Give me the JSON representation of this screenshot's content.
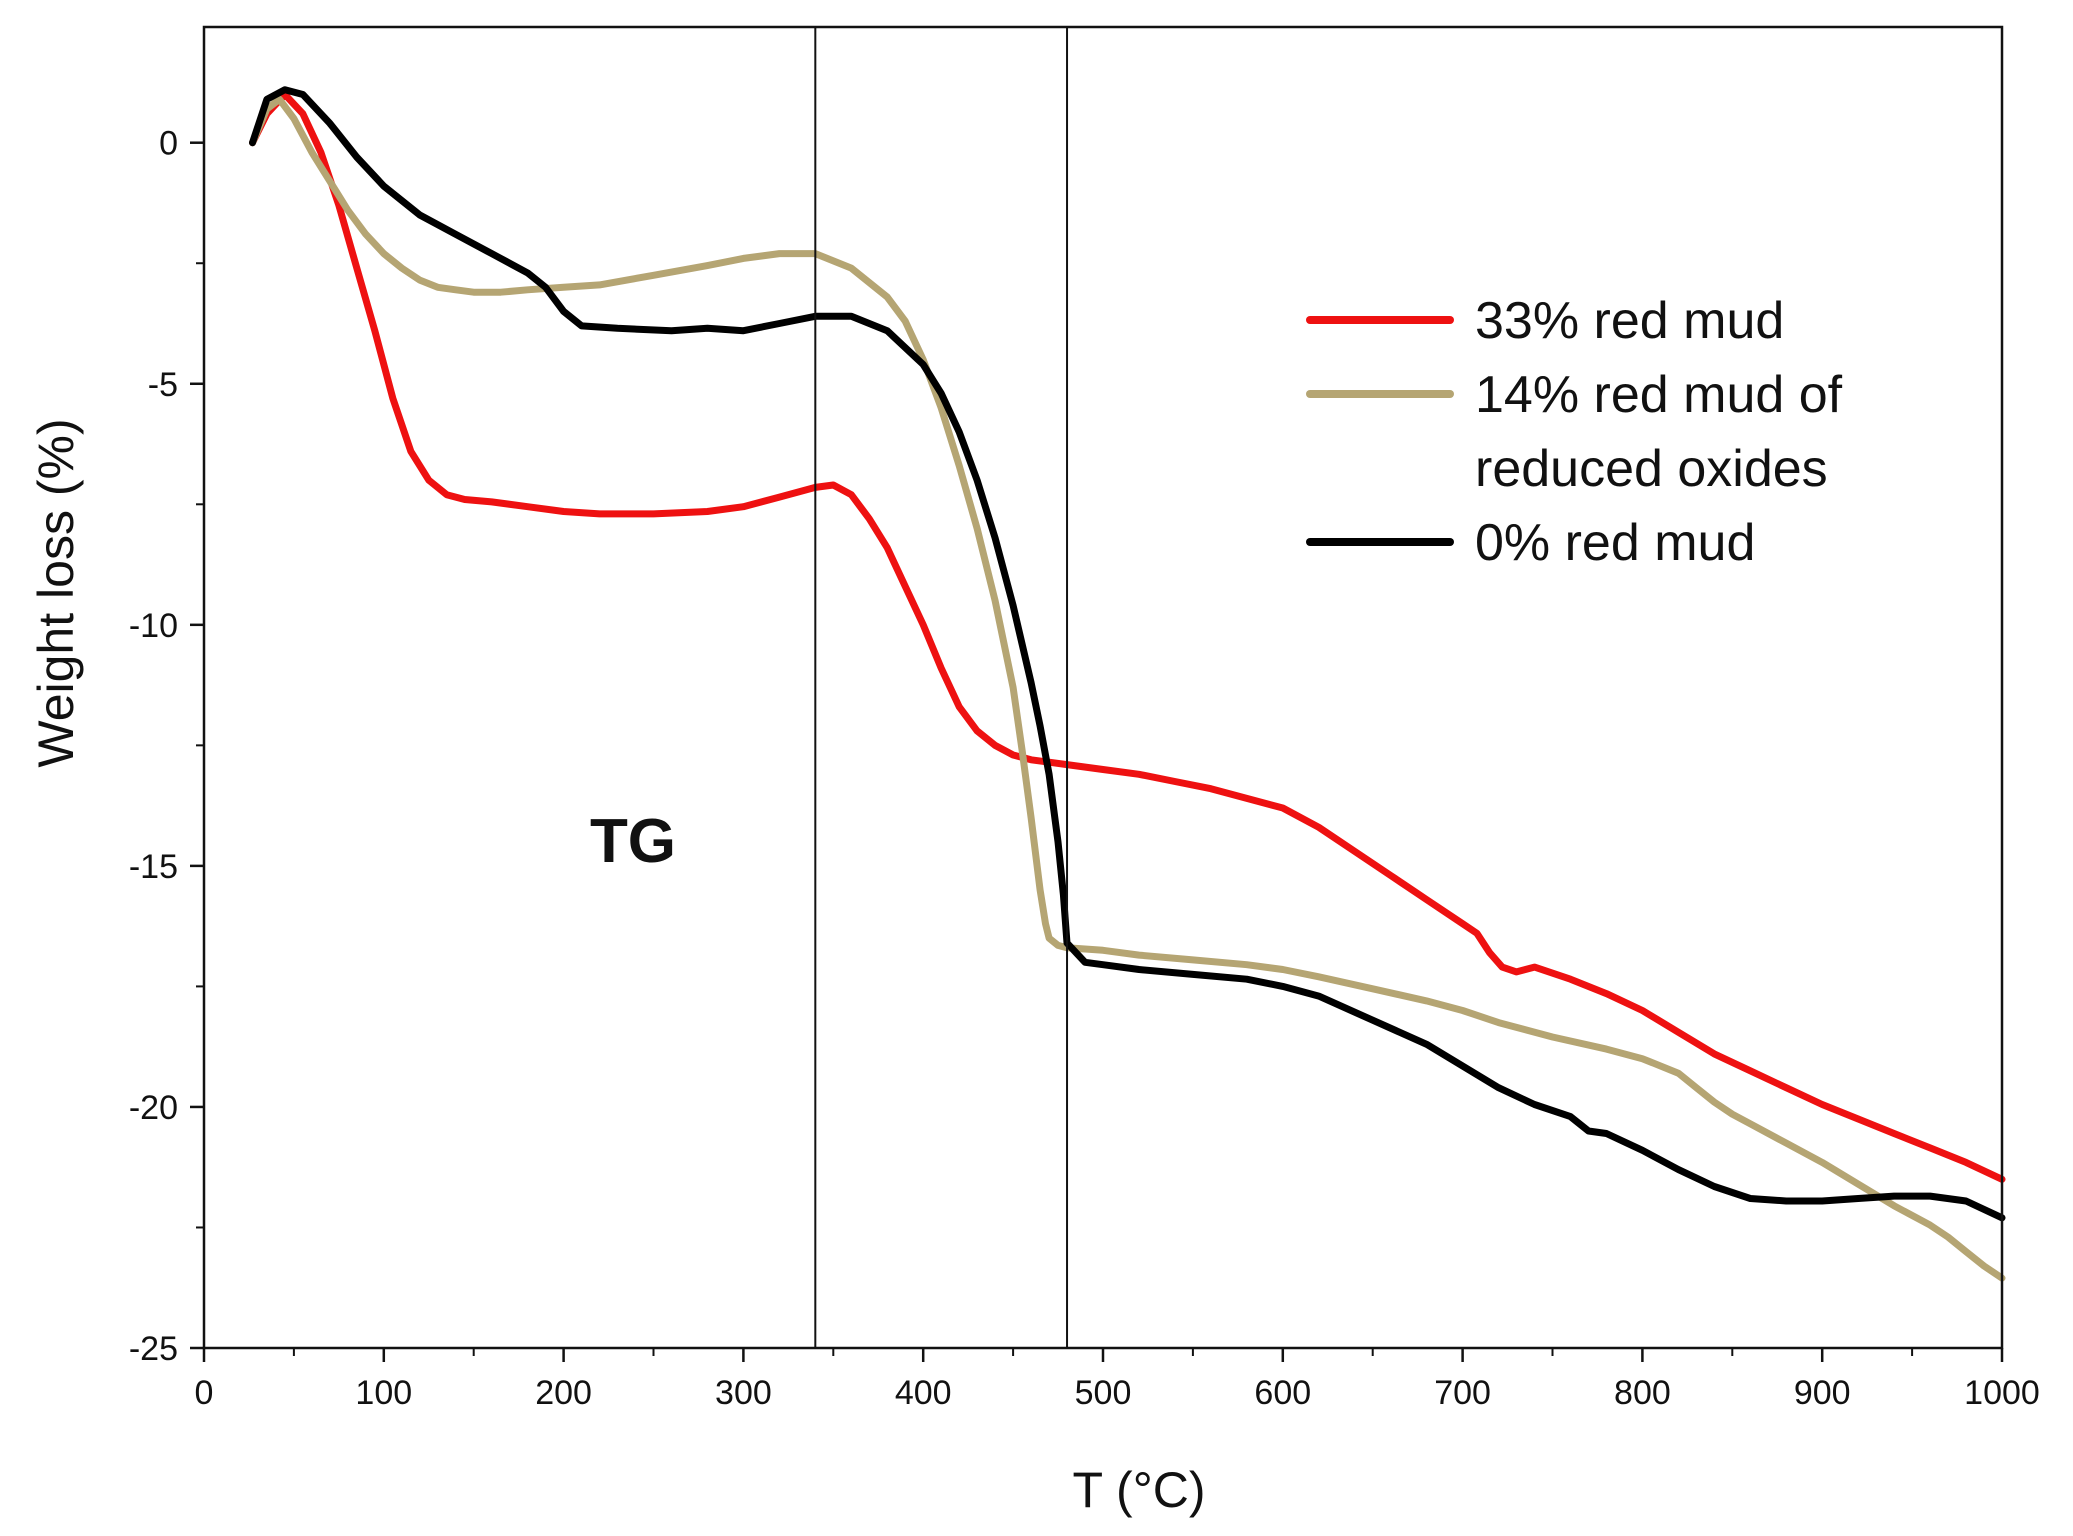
{
  "chart_data": {
    "type": "line",
    "title": "",
    "xlabel": "T (°C)",
    "ylabel": "Weight loss (%)",
    "xlim": [
      0,
      1000
    ],
    "ylim": [
      -25,
      2.4
    ],
    "xticks": [
      0,
      100,
      200,
      300,
      400,
      500,
      600,
      700,
      800,
      900,
      1000
    ],
    "xtick_labels": [
      "0",
      "100",
      "200",
      "300",
      "400",
      "500",
      "600",
      "700",
      "800",
      "900",
      "1000"
    ],
    "yticks": [
      0,
      -5,
      -10,
      -15,
      -20,
      -25
    ],
    "ytick_labels": [
      "0",
      "-5",
      "-10",
      "-15",
      "-20",
      "-25"
    ],
    "grid": false,
    "legend_position": "top-right",
    "annotation": "TG",
    "vertical_lines": [
      340,
      480
    ],
    "series": [
      {
        "name": "33% red mud",
        "legend_lines": [
          "33% red mud"
        ],
        "color": "#ee1111",
        "x": [
          27,
          35,
          45,
          55,
          65,
          75,
          85,
          95,
          105,
          115,
          125,
          135,
          145,
          160,
          180,
          200,
          220,
          250,
          280,
          300,
          320,
          340,
          350,
          360,
          370,
          380,
          390,
          400,
          410,
          420,
          430,
          440,
          450,
          460,
          470,
          480,
          500,
          520,
          540,
          560,
          580,
          600,
          620,
          640,
          660,
          680,
          700,
          708,
          715,
          722,
          730,
          740,
          760,
          780,
          800,
          820,
          840,
          860,
          880,
          900,
          920,
          940,
          960,
          980,
          1000
        ],
        "y": [
          0.0,
          0.6,
          1.0,
          0.6,
          -0.2,
          -1.3,
          -2.6,
          -3.9,
          -5.3,
          -6.4,
          -7.0,
          -7.3,
          -7.4,
          -7.45,
          -7.55,
          -7.65,
          -7.7,
          -7.7,
          -7.65,
          -7.55,
          -7.35,
          -7.15,
          -7.1,
          -7.3,
          -7.8,
          -8.4,
          -9.2,
          -10.0,
          -10.9,
          -11.7,
          -12.2,
          -12.5,
          -12.7,
          -12.8,
          -12.85,
          -12.9,
          -13.0,
          -13.1,
          -13.25,
          -13.4,
          -13.6,
          -13.8,
          -14.2,
          -14.7,
          -15.2,
          -15.7,
          -16.2,
          -16.4,
          -16.8,
          -17.1,
          -17.2,
          -17.1,
          -17.35,
          -17.65,
          -18.0,
          -18.45,
          -18.9,
          -19.25,
          -19.6,
          -19.95,
          -20.25,
          -20.55,
          -20.85,
          -21.15,
          -21.5
        ]
      },
      {
        "name": "14% red mud of reduced oxides",
        "legend_lines": [
          "14% red mud of",
          " reduced oxides"
        ],
        "color": "#b5a573",
        "x": [
          27,
          35,
          42,
          50,
          60,
          70,
          80,
          90,
          100,
          110,
          120,
          130,
          140,
          150,
          165,
          180,
          200,
          220,
          250,
          280,
          300,
          320,
          340,
          360,
          380,
          390,
          400,
          410,
          420,
          430,
          440,
          450,
          455,
          460,
          465,
          468,
          470,
          475,
          480,
          500,
          520,
          550,
          580,
          600,
          620,
          650,
          680,
          700,
          720,
          750,
          780,
          800,
          820,
          830,
          840,
          850,
          860,
          880,
          900,
          920,
          940,
          960,
          970,
          980,
          990,
          1000
        ],
        "y": [
          0.0,
          0.7,
          0.9,
          0.5,
          -0.2,
          -0.8,
          -1.4,
          -1.9,
          -2.3,
          -2.6,
          -2.85,
          -3.0,
          -3.05,
          -3.1,
          -3.1,
          -3.05,
          -3.0,
          -2.95,
          -2.75,
          -2.55,
          -2.4,
          -2.3,
          -2.3,
          -2.6,
          -3.2,
          -3.7,
          -4.5,
          -5.5,
          -6.7,
          -8.0,
          -9.5,
          -11.3,
          -12.6,
          -14.0,
          -15.5,
          -16.2,
          -16.5,
          -16.65,
          -16.7,
          -16.75,
          -16.85,
          -16.95,
          -17.05,
          -17.15,
          -17.3,
          -17.55,
          -17.8,
          -18.0,
          -18.25,
          -18.55,
          -18.8,
          -19.0,
          -19.3,
          -19.6,
          -19.9,
          -20.15,
          -20.35,
          -20.75,
          -21.15,
          -21.6,
          -22.05,
          -22.45,
          -22.7,
          -23.0,
          -23.3,
          -23.55
        ]
      },
      {
        "name": "0% red mud",
        "legend_lines": [
          " 0% red mud"
        ],
        "color": "#000000",
        "x": [
          27,
          35,
          45,
          55,
          70,
          85,
          100,
          120,
          140,
          160,
          180,
          190,
          200,
          210,
          230,
          260,
          280,
          300,
          320,
          340,
          360,
          380,
          400,
          410,
          420,
          430,
          440,
          450,
          460,
          465,
          470,
          475,
          478,
          480,
          490,
          500,
          520,
          550,
          580,
          600,
          620,
          650,
          680,
          700,
          720,
          740,
          760,
          770,
          780,
          800,
          820,
          840,
          860,
          880,
          900,
          920,
          940,
          960,
          980,
          1000
        ],
        "y": [
          0.0,
          0.9,
          1.1,
          1.0,
          0.4,
          -0.3,
          -0.9,
          -1.5,
          -1.9,
          -2.3,
          -2.7,
          -3.0,
          -3.5,
          -3.8,
          -3.85,
          -3.9,
          -3.85,
          -3.9,
          -3.75,
          -3.6,
          -3.6,
          -3.9,
          -4.6,
          -5.2,
          -6.0,
          -7.0,
          -8.2,
          -9.6,
          -11.2,
          -12.1,
          -13.1,
          -14.5,
          -15.6,
          -16.6,
          -17.0,
          -17.05,
          -17.15,
          -17.25,
          -17.35,
          -17.5,
          -17.7,
          -18.2,
          -18.7,
          -19.15,
          -19.6,
          -19.95,
          -20.2,
          -20.5,
          -20.55,
          -20.9,
          -21.3,
          -21.65,
          -21.9,
          -21.95,
          -21.95,
          -21.9,
          -21.85,
          -21.85,
          -21.95,
          -22.3
        ]
      }
    ]
  }
}
